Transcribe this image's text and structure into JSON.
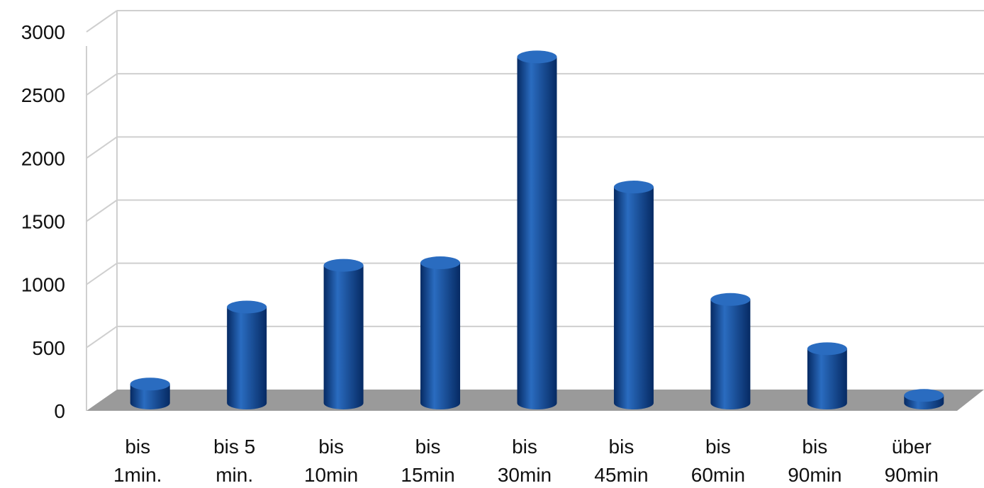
{
  "chart_data": {
    "type": "bar",
    "style": "3d-cylinder",
    "title": "",
    "xlabel": "",
    "ylabel": "",
    "categories": [
      [
        "bis",
        "1min."
      ],
      [
        "bis 5",
        "min."
      ],
      [
        "bis",
        "10min"
      ],
      [
        "bis",
        "15min"
      ],
      [
        "bis",
        "30min"
      ],
      [
        "bis",
        "45min"
      ],
      [
        "bis",
        "60min"
      ],
      [
        "bis",
        "90min"
      ],
      [
        "über",
        "90min"
      ]
    ],
    "values": [
      150,
      760,
      1090,
      1110,
      2740,
      1710,
      820,
      430,
      60
    ],
    "ylim": [
      0,
      3000
    ],
    "yticks": [
      0,
      500,
      1000,
      1500,
      2000,
      2500,
      3000
    ],
    "grid": true,
    "legend": "none",
    "colors": {
      "bar": "#0a3d8c",
      "bar_light": "#2a6cc0",
      "bar_dark": "#062a63",
      "floor": "#9a9a9a",
      "grid": "#cfcfcf"
    }
  }
}
